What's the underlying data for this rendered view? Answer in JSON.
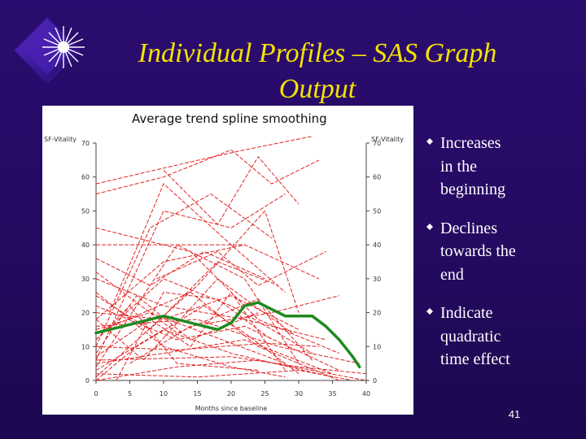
{
  "slide": {
    "title_line1": "Individual Profiles – SAS Graph",
    "title_line2": "Output",
    "page_number": "41",
    "colors": {
      "background": "#260a63",
      "title": "#f5e300",
      "text": "#ffffff",
      "profile": "#e22222",
      "trend": "#1f8a1f"
    }
  },
  "bullets": [
    {
      "line1": "Increases",
      "line2": "in the",
      "line3": "beginning"
    },
    {
      "line1": "Declines",
      "line2": "towards the",
      "line3": "end"
    },
    {
      "line1": "Indicate",
      "line2": "quadratic",
      "line3": "time effect"
    }
  ],
  "chart_data": {
    "type": "line",
    "title": "Average trend spline smoothing",
    "ylabel": "SF-Vitality",
    "ylabel_right": "SF-Vitality",
    "xlabel": "Months since baseline",
    "xlim": [
      0,
      40
    ],
    "ylim": [
      0,
      70
    ],
    "xticks": [
      0,
      5,
      10,
      15,
      20,
      25,
      30,
      35,
      40
    ],
    "yticks": [
      0,
      10,
      20,
      30,
      40,
      50,
      60,
      70
    ],
    "profile_color": "#e22222",
    "trend_color": "#1f8a1f",
    "profiles": [
      [
        [
          0,
          0
        ],
        [
          12,
          4
        ],
        [
          24,
          6
        ],
        [
          40,
          0
        ]
      ],
      [
        [
          0,
          2
        ],
        [
          15,
          1
        ],
        [
          30,
          3
        ],
        [
          38,
          0
        ]
      ],
      [
        [
          0,
          5
        ],
        [
          10,
          8
        ],
        [
          22,
          12
        ],
        [
          35,
          2
        ]
      ],
      [
        [
          0,
          10
        ],
        [
          12,
          9
        ],
        [
          25,
          11
        ],
        [
          33,
          10
        ]
      ],
      [
        [
          0,
          15
        ],
        [
          8,
          20
        ],
        [
          16,
          14
        ],
        [
          28,
          5
        ]
      ],
      [
        [
          0,
          20
        ],
        [
          10,
          18
        ],
        [
          20,
          25
        ],
        [
          30,
          15
        ]
      ],
      [
        [
          0,
          8
        ],
        [
          6,
          25
        ],
        [
          14,
          12
        ],
        [
          24,
          20
        ]
      ],
      [
        [
          0,
          12
        ],
        [
          10,
          30
        ],
        [
          20,
          22
        ],
        [
          32,
          8
        ]
      ],
      [
        [
          0,
          25
        ],
        [
          8,
          15
        ],
        [
          18,
          35
        ],
        [
          27,
          28
        ]
      ],
      [
        [
          0,
          4
        ],
        [
          12,
          40
        ],
        [
          22,
          30
        ],
        [
          30,
          5
        ]
      ],
      [
        [
          0,
          18
        ],
        [
          10,
          35
        ],
        [
          22,
          40
        ],
        [
          33,
          30
        ]
      ],
      [
        [
          0,
          30
        ],
        [
          10,
          22
        ],
        [
          22,
          18
        ],
        [
          34,
          12
        ]
      ],
      [
        [
          0,
          6
        ],
        [
          10,
          50
        ],
        [
          20,
          45
        ],
        [
          28,
          55
        ]
      ],
      [
        [
          0,
          1
        ],
        [
          15,
          28
        ],
        [
          25,
          50
        ],
        [
          30,
          20
        ]
      ],
      [
        [
          0,
          22
        ],
        [
          12,
          12
        ],
        [
          22,
          16
        ],
        [
          36,
          3
        ]
      ],
      [
        [
          0,
          16
        ],
        [
          15,
          18
        ],
        [
          27,
          10
        ],
        [
          39,
          5
        ]
      ],
      [
        [
          0,
          3
        ],
        [
          10,
          15
        ],
        [
          20,
          8
        ],
        [
          35,
          1
        ]
      ],
      [
        [
          0,
          12
        ],
        [
          5,
          22
        ],
        [
          12,
          5
        ],
        [
          24,
          3
        ]
      ],
      [
        [
          0,
          0
        ],
        [
          6,
          10
        ],
        [
          16,
          22
        ],
        [
          22,
          14
        ],
        [
          30,
          2
        ]
      ],
      [
        [
          0,
          26
        ],
        [
          10,
          10
        ],
        [
          20,
          4
        ],
        [
          28,
          1
        ]
      ],
      [
        [
          0,
          10
        ],
        [
          8,
          45
        ],
        [
          17,
          55
        ],
        [
          26,
          42
        ]
      ],
      [
        [
          0,
          55
        ],
        [
          10,
          60
        ],
        [
          20,
          68
        ],
        [
          26,
          58
        ],
        [
          33,
          65
        ]
      ],
      [
        [
          0,
          58
        ],
        [
          13,
          64
        ],
        [
          22,
          68
        ],
        [
          32,
          72
        ]
      ],
      [
        [
          10,
          62
        ],
        [
          18,
          46
        ],
        [
          24,
          66
        ],
        [
          30,
          52
        ]
      ],
      [
        [
          2,
          20
        ],
        [
          10,
          58
        ],
        [
          20,
          40
        ],
        [
          28,
          26
        ]
      ],
      [
        [
          0,
          40
        ],
        [
          10,
          40
        ],
        [
          22,
          40
        ]
      ],
      [
        [
          9,
          30
        ],
        [
          18,
          38
        ],
        [
          24,
          28
        ],
        [
          34,
          38
        ]
      ],
      [
        [
          0,
          36
        ],
        [
          8,
          28
        ],
        [
          16,
          38
        ],
        [
          25,
          30
        ]
      ],
      [
        [
          0,
          14
        ],
        [
          14,
          26
        ],
        [
          24,
          10
        ],
        [
          36,
          0
        ]
      ],
      [
        [
          0,
          6
        ],
        [
          20,
          7
        ],
        [
          30,
          4
        ],
        [
          40,
          2
        ]
      ],
      [
        [
          5,
          5
        ],
        [
          14,
          16
        ],
        [
          26,
          20
        ],
        [
          36,
          25
        ]
      ],
      [
        [
          0,
          18
        ],
        [
          7,
          6
        ],
        [
          18,
          30
        ],
        [
          29,
          14
        ]
      ],
      [
        [
          0,
          32
        ],
        [
          12,
          14
        ],
        [
          24,
          24
        ],
        [
          32,
          6
        ]
      ],
      [
        [
          3,
          0
        ],
        [
          10,
          26
        ],
        [
          18,
          24
        ],
        [
          26,
          12
        ]
      ],
      [
        [
          0,
          45
        ],
        [
          14,
          38
        ],
        [
          24,
          18
        ],
        [
          36,
          8
        ]
      ],
      [
        [
          0,
          7
        ],
        [
          8,
          18
        ],
        [
          14,
          10
        ],
        [
          20,
          26
        ],
        [
          28,
          3
        ]
      ]
    ],
    "average_trend": {
      "x": [
        0,
        2,
        4,
        6,
        8,
        10,
        12,
        14,
        16,
        18,
        20,
        22,
        24,
        26,
        28,
        30,
        32,
        34,
        36,
        38,
        39
      ],
      "y": [
        14,
        15,
        16,
        17,
        18,
        19,
        18,
        17,
        16,
        15,
        17,
        22,
        23,
        21,
        19,
        19,
        19,
        16,
        12,
        7,
        4
      ]
    }
  }
}
